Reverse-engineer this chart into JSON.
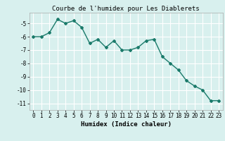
{
  "x": [
    0,
    1,
    2,
    3,
    4,
    5,
    6,
    7,
    8,
    9,
    10,
    11,
    12,
    13,
    14,
    15,
    16,
    17,
    18,
    19,
    20,
    21,
    22,
    23
  ],
  "y": [
    -6.0,
    -6.0,
    -5.7,
    -4.7,
    -5.0,
    -4.8,
    -5.3,
    -6.5,
    -6.2,
    -6.8,
    -6.3,
    -7.0,
    -7.0,
    -6.8,
    -6.3,
    -6.2,
    -7.5,
    -8.0,
    -8.5,
    -9.3,
    -9.7,
    -10.0,
    -10.8,
    -10.8
  ],
  "title": "Courbe de l'humidex pour Les Diablerets",
  "xlabel": "Humidex (Indice chaleur)",
  "ylabel": "",
  "xlim": [
    -0.5,
    23.5
  ],
  "ylim": [
    -11.5,
    -4.2
  ],
  "yticks": [
    -11,
    -10,
    -9,
    -8,
    -7,
    -6,
    -5
  ],
  "xticks": [
    0,
    1,
    2,
    3,
    4,
    5,
    6,
    7,
    8,
    9,
    10,
    11,
    12,
    13,
    14,
    15,
    16,
    17,
    18,
    19,
    20,
    21,
    22,
    23
  ],
  "line_color": "#1a7a6a",
  "marker": "D",
  "marker_size": 2,
  "bg_color": "#d8f0ee",
  "grid_color": "#ffffff",
  "title_fontsize": 6.5,
  "label_fontsize": 6.5,
  "tick_fontsize": 5.5
}
